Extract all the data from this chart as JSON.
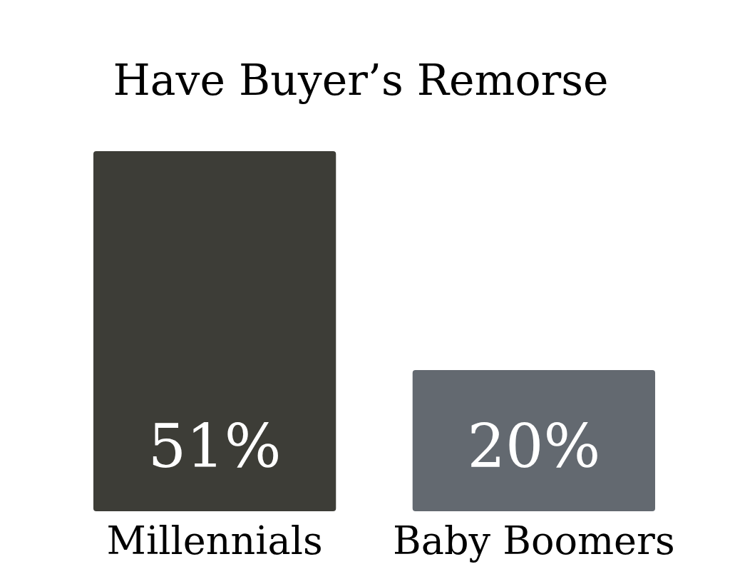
{
  "chart_data": {
    "type": "bar",
    "title": "Have Buyer’s Remorse",
    "categories": [
      "Millennials",
      "Baby Boomers"
    ],
    "values": [
      51,
      20
    ],
    "colors": [
      "#3d3d37",
      "#636970"
    ],
    "value_labels": [
      "51%",
      "20%"
    ]
  }
}
